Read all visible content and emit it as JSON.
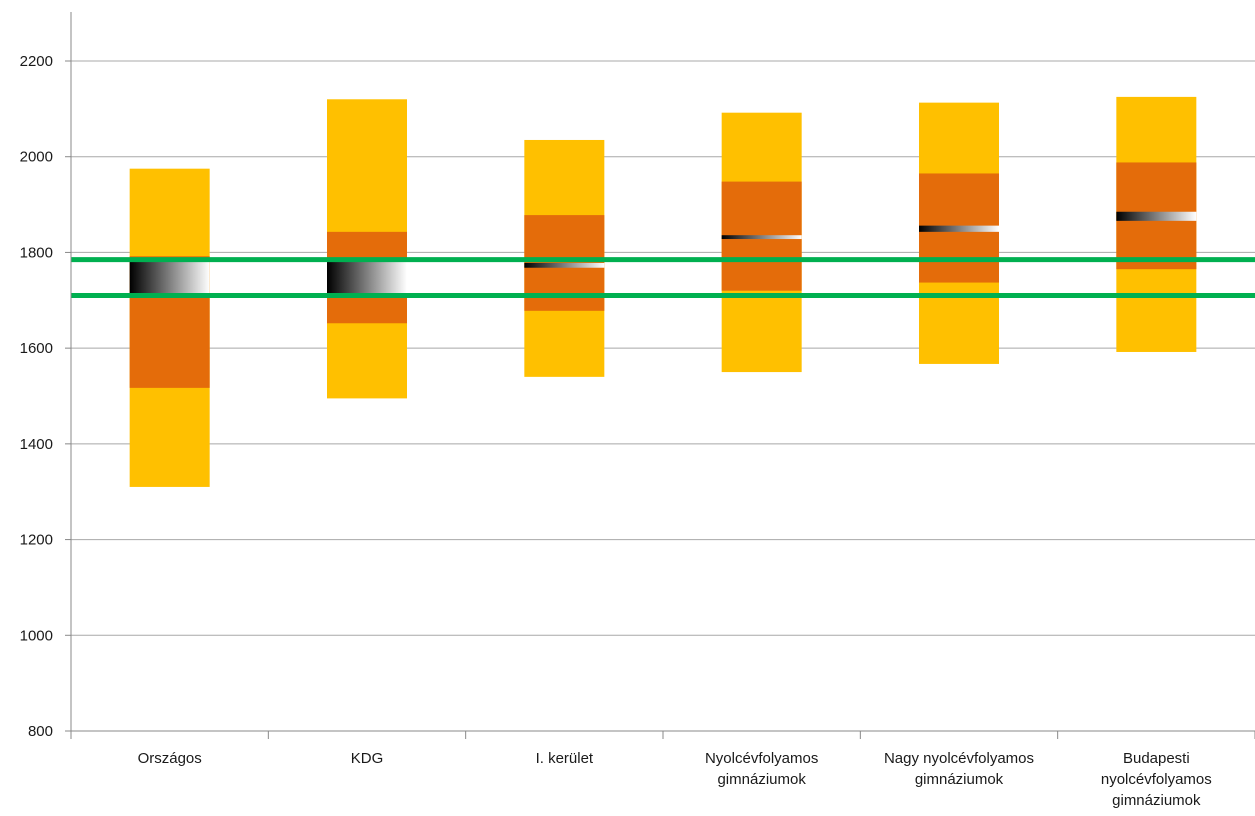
{
  "chart_data": {
    "type": "bar",
    "subtype": "floating-range",
    "title": "",
    "xlabel": "",
    "ylabel": "",
    "ylim": [
      800,
      2200
    ],
    "yticks": [
      800,
      1000,
      1200,
      1400,
      1600,
      1800,
      2000,
      2200
    ],
    "grid": true,
    "legend": "none",
    "categories": [
      [
        "Országos"
      ],
      [
        "KDG"
      ],
      [
        "I. kerület"
      ],
      [
        "Nyolcévfolyamos",
        "gimnáziumok"
      ],
      [
        "Nagy nyolcévfolyamos",
        "gimnáziumok"
      ],
      [
        "Budapesti",
        "nyolcévfolyamos",
        "gimnáziumok"
      ]
    ],
    "series": [
      {
        "role": "outer-range",
        "color": "#FFC000",
        "low": [
          1310,
          1495,
          1540,
          1550,
          1567,
          1592
        ],
        "high": [
          1975,
          2120,
          2035,
          2092,
          2113,
          2125
        ]
      },
      {
        "role": "inner-range",
        "color": "#E46C0A",
        "low": [
          1517,
          1652,
          1678,
          1720,
          1737,
          1765
        ],
        "high": [
          1792,
          1843,
          1878,
          1948,
          1965,
          1988
        ]
      },
      {
        "role": "mean-band",
        "color_from": "#000000",
        "color_to": "#FFFFFF",
        "low": [
          1714,
          1710,
          1768,
          1828,
          1843,
          1866
        ],
        "high": [
          1780,
          1780,
          1778,
          1836,
          1856,
          1885
        ]
      }
    ],
    "reference_lines": [
      {
        "value": 1785,
        "color": "#00B050"
      },
      {
        "value": 1710,
        "color": "#00B050"
      }
    ]
  }
}
